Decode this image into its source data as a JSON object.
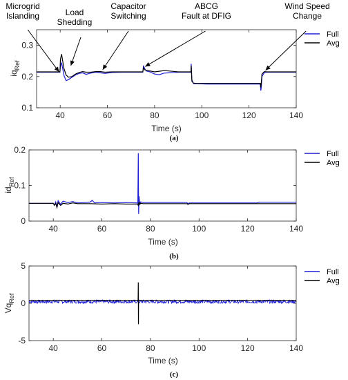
{
  "chart_data": [
    {
      "type": "line",
      "ylabel": "iq",
      "ylabel_sub": "Ref",
      "xlabel": "Time (s)",
      "caption": "(a)",
      "xlim": [
        30,
        140
      ],
      "ylim": [
        0.1,
        0.35
      ],
      "xticks": [
        40,
        60,
        80,
        100,
        120,
        140
      ],
      "yticks": [
        0.1,
        0.2,
        0.3
      ],
      "legend": {
        "position": "top-right",
        "entries": [
          "Full",
          "Avg"
        ]
      },
      "series": [
        {
          "name": "Full",
          "color": "#1f1fd6",
          "x": [
            30,
            39.9,
            40.1,
            40.6,
            41,
            41.6,
            42.5,
            43.5,
            45,
            46.5,
            48,
            49.5,
            51,
            53,
            55,
            57,
            59,
            62,
            66,
            70,
            74,
            75,
            75.3,
            75.8,
            76.5,
            78,
            80,
            82,
            84,
            86,
            90,
            95.4,
            95.5,
            95.8,
            96.5,
            98,
            102,
            110,
            118,
            124.8,
            125,
            125.2,
            125.5,
            126.5,
            127.5,
            130,
            135,
            140
          ],
          "y": [
            0.214,
            0.214,
            0.232,
            0.245,
            0.228,
            0.203,
            0.187,
            0.19,
            0.198,
            0.205,
            0.21,
            0.212,
            0.207,
            0.211,
            0.214,
            0.212,
            0.21,
            0.213,
            0.214,
            0.214,
            0.214,
            0.214,
            0.235,
            0.225,
            0.218,
            0.215,
            0.208,
            0.206,
            0.211,
            0.212,
            0.214,
            0.214,
            0.241,
            0.19,
            0.177,
            0.177,
            0.176,
            0.176,
            0.176,
            0.176,
            0.155,
            0.165,
            0.2,
            0.213,
            0.214,
            0.214,
            0.214,
            0.214
          ]
        },
        {
          "name": "Avg",
          "color": "#000000",
          "x": [
            30,
            39.9,
            40.1,
            40.6,
            41,
            41.6,
            42.5,
            43.5,
            45,
            46.5,
            48,
            49.5,
            51,
            53,
            55,
            57,
            59,
            62,
            66,
            70,
            74,
            75,
            75.3,
            75.8,
            76.5,
            78,
            80,
            82,
            84,
            86,
            90,
            95.4,
            95.5,
            95.8,
            96.5,
            98,
            102,
            110,
            118,
            124.8,
            125,
            125.2,
            125.5,
            126.5,
            127.5,
            130,
            135,
            140
          ],
          "y": [
            0.215,
            0.215,
            0.255,
            0.272,
            0.252,
            0.225,
            0.205,
            0.198,
            0.2,
            0.208,
            0.213,
            0.216,
            0.214,
            0.214,
            0.216,
            0.216,
            0.214,
            0.215,
            0.215,
            0.215,
            0.215,
            0.215,
            0.228,
            0.222,
            0.22,
            0.218,
            0.215,
            0.217,
            0.219,
            0.218,
            0.215,
            0.215,
            0.235,
            0.185,
            0.179,
            0.178,
            0.178,
            0.178,
            0.178,
            0.178,
            0.165,
            0.18,
            0.208,
            0.216,
            0.215,
            0.215,
            0.215,
            0.215
          ]
        }
      ],
      "annotations": [
        {
          "lines": [
            "Microgrid",
            "Islanding"
          ],
          "target": [
            39.5,
            0.215
          ]
        },
        {
          "lines": [
            "Load",
            "Shedding"
          ],
          "target": [
            44.5,
            0.235
          ]
        },
        {
          "lines": [
            "Capacitor",
            "Switching"
          ],
          "target": [
            58,
            0.222
          ]
        },
        {
          "lines": [
            "ABCG",
            "Fault at DFIG"
          ],
          "target": [
            76,
            0.232
          ]
        },
        {
          "lines": [
            "Wind Speed",
            "Change"
          ],
          "target": [
            127,
            0.22
          ]
        }
      ]
    },
    {
      "type": "line",
      "ylabel": "id",
      "ylabel_sub": "Ref",
      "xlabel": "Time (s)",
      "caption": "(b)",
      "xlim": [
        30,
        140
      ],
      "ylim": [
        0,
        0.2
      ],
      "xticks": [
        40,
        60,
        80,
        100,
        120,
        140
      ],
      "yticks": [
        0,
        0.1,
        0.2
      ],
      "legend": {
        "position": "top-right",
        "entries": [
          "Full",
          "Avg"
        ]
      },
      "series": [
        {
          "name": "Full",
          "color": "#1f1fd6",
          "x": [
            30,
            40,
            40.5,
            41,
            41.5,
            42,
            43,
            44,
            46,
            48,
            50,
            55,
            56,
            57,
            60,
            65,
            70,
            74.5,
            74.8,
            75,
            75.15,
            75.3,
            75.6,
            76,
            77,
            80,
            90,
            95,
            95.4,
            96,
            100,
            110,
            120,
            124,
            125,
            126,
            130,
            140
          ],
          "y": [
            0.05,
            0.05,
            0.045,
            0.054,
            0.04,
            0.057,
            0.047,
            0.056,
            0.052,
            0.055,
            0.051,
            0.053,
            0.058,
            0.051,
            0.052,
            0.051,
            0.052,
            0.051,
            0.05,
            0.191,
            0.02,
            0.07,
            0.047,
            0.054,
            0.052,
            0.052,
            0.052,
            0.052,
            0.049,
            0.051,
            0.051,
            0.051,
            0.051,
            0.051,
            0.053,
            0.053,
            0.053,
            0.053
          ]
        },
        {
          "name": "Avg",
          "color": "#000000",
          "x": [
            30,
            40,
            40.5,
            41,
            41.5,
            42,
            43,
            44,
            46,
            48,
            50,
            55,
            60,
            65,
            70,
            74.5,
            75,
            75.3,
            75.6,
            76,
            77,
            80,
            90,
            95,
            95.4,
            96,
            100,
            110,
            120,
            130,
            140
          ],
          "y": [
            0.05,
            0.05,
            0.044,
            0.05,
            0.038,
            0.052,
            0.044,
            0.05,
            0.048,
            0.051,
            0.049,
            0.049,
            0.048,
            0.049,
            0.048,
            0.048,
            0.044,
            0.054,
            0.047,
            0.05,
            0.049,
            0.049,
            0.049,
            0.049,
            0.047,
            0.049,
            0.049,
            0.049,
            0.049,
            0.049,
            0.049
          ]
        }
      ]
    },
    {
      "type": "line",
      "ylabel": "Vq",
      "ylabel_sub": "Ref",
      "xlabel": "Time (s)",
      "caption": "(c)",
      "xlim": [
        30,
        140
      ],
      "ylim": [
        -5,
        5
      ],
      "xticks": [
        40,
        60,
        80,
        100,
        120,
        140
      ],
      "yticks": [
        -5,
        0,
        5
      ],
      "legend": {
        "position": "top-right",
        "entries": [
          "Full",
          "Avg"
        ]
      },
      "series": [
        {
          "name": "Full",
          "color": "#1f1fd6",
          "noise_band": [
            0,
            0.45
          ],
          "x": [
            30,
            140
          ],
          "y": [
            0.4,
            0.4
          ]
        },
        {
          "name": "Avg",
          "color": "#000000",
          "x": [
            30,
            74.9,
            75,
            75.05,
            75.1,
            140
          ],
          "y": [
            0.4,
            0.4,
            2.8,
            -2.8,
            0.4,
            0.4
          ]
        }
      ]
    }
  ]
}
